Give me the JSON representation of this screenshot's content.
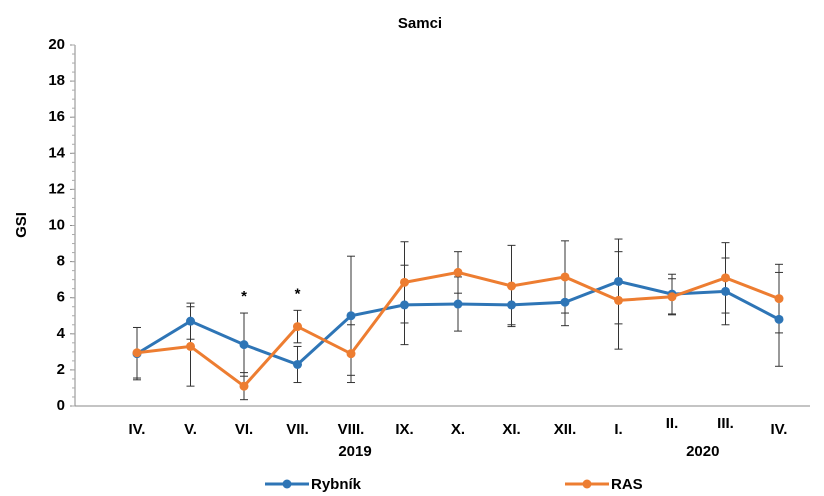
{
  "chart_data": {
    "type": "line",
    "title": "Samci",
    "ylabel": "GSI",
    "categories": [
      "IV.",
      "V.",
      "VI.",
      "VII.",
      "VIII.",
      "IX.",
      "X.",
      "XI.",
      "XII.",
      "I.",
      "II.",
      "III.",
      "IV."
    ],
    "series": [
      {
        "name": "Rybník",
        "color": "#2e75b6",
        "values": [
          2.9,
          4.7,
          3.4,
          2.3,
          5.0,
          5.6,
          5.65,
          5.6,
          5.75,
          6.9,
          6.2,
          6.35,
          4.8
        ],
        "errors": [
          1.45,
          1.0,
          1.75,
          1.0,
          3.3,
          2.2,
          1.5,
          1.1,
          1.3,
          2.35,
          1.1,
          1.85,
          2.6
        ]
      },
      {
        "name": "RAS",
        "color": "#ed7d31",
        "values": [
          2.95,
          3.3,
          1.1,
          4.4,
          2.9,
          6.85,
          7.4,
          6.65,
          7.15,
          5.85,
          6.05,
          7.1,
          5.95
        ],
        "errors": [
          1.4,
          2.2,
          0.75,
          0.9,
          1.6,
          2.25,
          1.15,
          2.25,
          2.0,
          2.7,
          1.0,
          1.95,
          1.9
        ]
      }
    ],
    "annotations": [
      {
        "text": "*",
        "category_index": 2
      },
      {
        "text": "*",
        "category_index": 3
      }
    ],
    "year_labels": [
      {
        "text": "2019",
        "category_indices": [
          4
        ]
      },
      {
        "text": "2020",
        "category_indices": [
          10,
          11
        ]
      }
    ],
    "ylim": [
      0,
      20
    ],
    "yticks": [
      0,
      2,
      4,
      6,
      8,
      10,
      12,
      14,
      16,
      18,
      20
    ],
    "grid": false
  }
}
